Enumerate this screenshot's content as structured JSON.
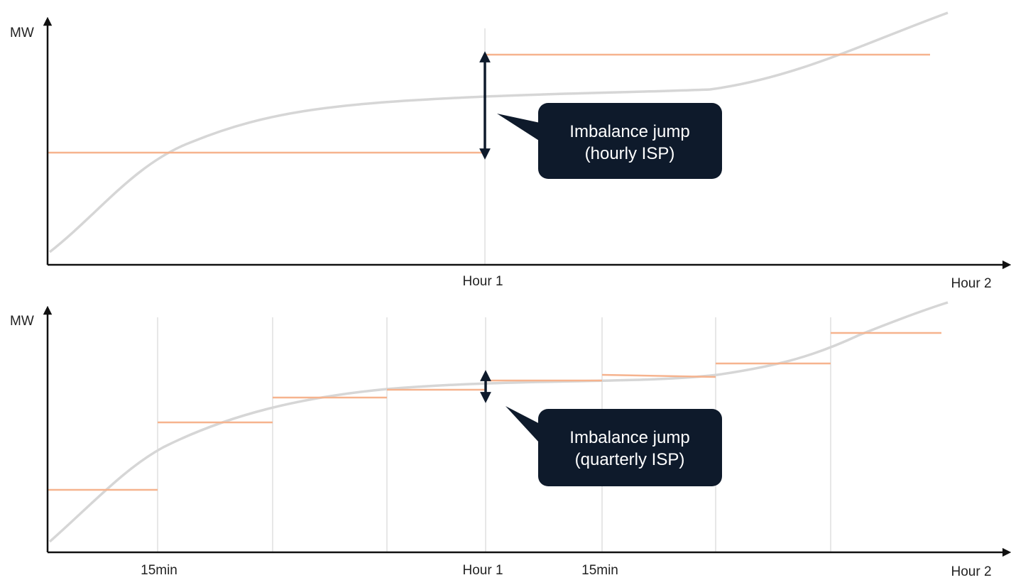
{
  "colors": {
    "step": "#f6b38e",
    "curve": "#d6d6d6",
    "axis": "#111111",
    "grid": "#cfcfcf",
    "callout": "#0e1a2b",
    "callout_text": "#ffffff",
    "arrow": "#0e1a2b"
  },
  "top": {
    "y_label": "MW",
    "x_labels": {
      "mid": "Hour 1",
      "end": "Hour 2"
    },
    "callout": {
      "line1": "Imbalance jump",
      "line2": "(hourly ISP)"
    }
  },
  "bottom": {
    "y_label": "MW",
    "x_labels": {
      "q1": "15min",
      "mid": "Hour 1",
      "q5": "15min",
      "end": "Hour 2"
    },
    "callout": {
      "line1": "Imbalance jump",
      "line2": "(quarterly ISP)"
    }
  }
}
